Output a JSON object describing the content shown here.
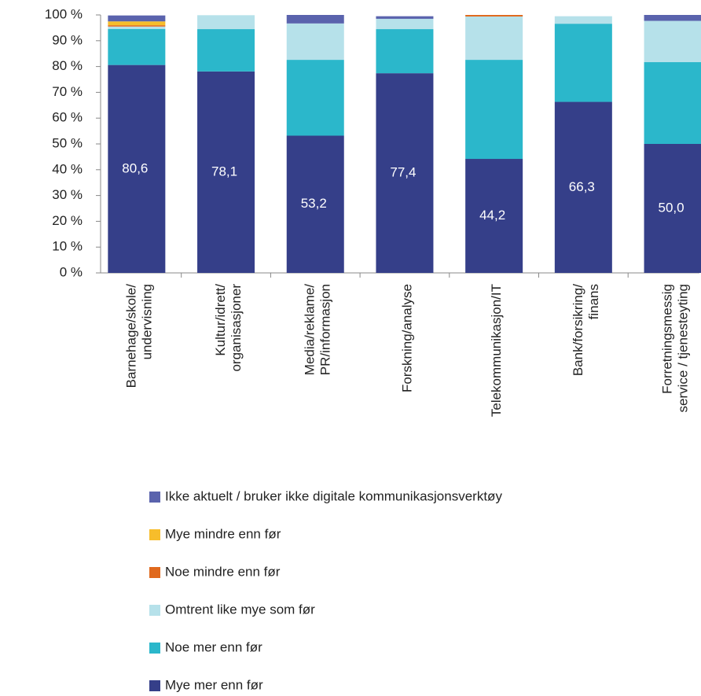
{
  "chart_data": {
    "type": "stacked_bar",
    "categories": [
      [
        "Barnehage/skole/",
        "undervisning"
      ],
      [
        "Kultur/idrett/",
        "organisasjoner"
      ],
      [
        "Media/reklame/",
        "PR/informasjon"
      ],
      [
        "Forskning/analyse"
      ],
      [
        "Telekommunikasjon/IT"
      ],
      [
        "Bank/forsikring/",
        "finans"
      ],
      [
        "Forretningsmessig",
        "service / tjenesteyting"
      ]
    ],
    "series": [
      {
        "name": "Mye mer enn før",
        "color": "#353f89",
        "values": [
          80.6,
          78.1,
          53.2,
          77.4,
          44.2,
          66.3,
          50.0
        ],
        "value_labels": [
          "80,6",
          "78,1",
          "53,2",
          "77,4",
          "44,2",
          "66,3",
          "50,0"
        ]
      },
      {
        "name": "Noe mer enn før",
        "color": "#2bb7cb",
        "values": [
          14.0,
          16.4,
          29.4,
          17.1,
          38.4,
          30.3,
          31.7
        ]
      },
      {
        "name": "Omtrent like mye som før",
        "color": "#b6e1ea",
        "values": [
          0.9,
          5.4,
          14.1,
          4.0,
          16.8,
          2.9,
          16.0
        ]
      },
      {
        "name": "Noe mindre enn før",
        "color": "#e0691d",
        "values": [
          0.5,
          0,
          0,
          0,
          0.6,
          0,
          0
        ]
      },
      {
        "name": "Mye mindre enn før",
        "color": "#f7bd2b",
        "values": [
          1.5,
          0,
          0,
          0,
          0,
          0,
          0
        ]
      },
      {
        "name": "Ikke aktuelt / bruker ikke digitale kommunikasjonsverktøy",
        "color": "#5a63ad",
        "values": [
          2.3,
          0,
          3.3,
          1.0,
          0,
          0,
          2.3
        ]
      }
    ],
    "ylim": [
      0,
      100
    ],
    "yticks": [
      {
        "value": 0,
        "label": "0 %"
      },
      {
        "value": 10,
        "label": "10 %"
      },
      {
        "value": 20,
        "label": "20 %"
      },
      {
        "value": 30,
        "label": "30 %"
      },
      {
        "value": 40,
        "label": "40 %"
      },
      {
        "value": 50,
        "label": "50 %"
      },
      {
        "value": 60,
        "label": "60 %"
      },
      {
        "value": 70,
        "label": "70 %"
      },
      {
        "value": 80,
        "label": "80 %"
      },
      {
        "value": 90,
        "label": "90 %"
      },
      {
        "value": 100,
        "label": "100 %"
      }
    ],
    "grid": false
  }
}
